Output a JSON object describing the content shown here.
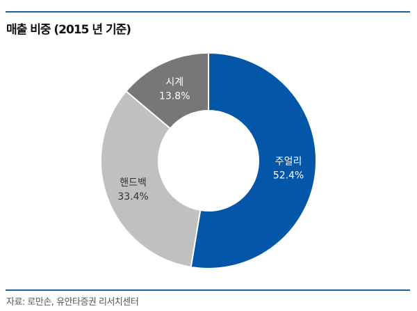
{
  "chart_data": {
    "type": "pie",
    "donut": true,
    "title": "매출 비중 (2015 년 기준)",
    "source": "자료: 로만손, 유안타증권 리서치센터",
    "slices": [
      {
        "label": "주얼리",
        "value": 52.4,
        "value_label": "52.4%",
        "color": "#0457a8",
        "text_color": "#ffffff"
      },
      {
        "label": "핸드백",
        "value": 33.4,
        "value_label": "33.4%",
        "color": "#c0c0c0",
        "text_color": "#333333"
      },
      {
        "label": "시계",
        "value": 13.8,
        "value_label": "13.8%",
        "color": "#777777",
        "text_color": "#ffffff"
      }
    ],
    "start": "top",
    "direction": "clockwise"
  }
}
